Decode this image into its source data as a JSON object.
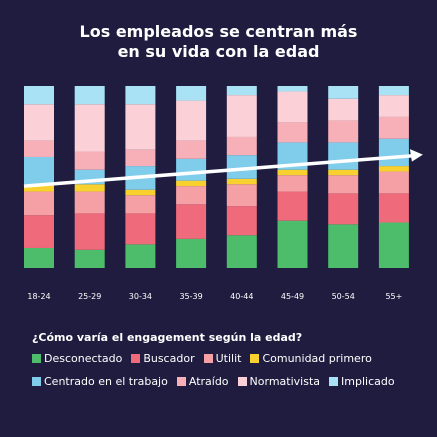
{
  "title_line1": "Los empleados se centran más",
  "title_line2": "en su vida con la edad",
  "legend_title": "¿Cómo varía el engagement según la edad?",
  "chart_data": {
    "type": "bar",
    "stacked": true,
    "normalized": true,
    "title": "Los empleados se centran más en su vida con la edad",
    "categories": [
      "18-24",
      "25-29",
      "30-34",
      "35-39",
      "40-44",
      "45-49",
      "50-54",
      "55+"
    ],
    "ylim": [
      0,
      100
    ],
    "series": [
      {
        "name": "Desconectado",
        "color": "#4dbd6b",
        "values": [
          11,
          10,
          13,
          16,
          18,
          26,
          24,
          25
        ]
      },
      {
        "name": "Buscador",
        "color": "#ef6b7b",
        "values": [
          18,
          20,
          17,
          19,
          16,
          16,
          17,
          16
        ]
      },
      {
        "name": "Utilit",
        "color": "#f5a0a5",
        "values": [
          13,
          12,
          10,
          10,
          12,
          9,
          10,
          12
        ]
      },
      {
        "name": "Comunidad primero",
        "color": "#f8d12e",
        "values": [
          4,
          4,
          3,
          3,
          3,
          3,
          3,
          3
        ]
      },
      {
        "name": "Centrado en el trabajo",
        "color": "#7fcdea",
        "values": [
          15,
          8,
          13,
          12,
          13,
          15,
          15,
          15
        ]
      },
      {
        "name": "Atraído",
        "color": "#f7b0b8",
        "values": [
          9,
          10,
          9,
          10,
          10,
          11,
          12,
          12
        ]
      },
      {
        "name": "Normativista",
        "color": "#fbd0d6",
        "values": [
          20,
          26,
          25,
          22,
          23,
          17,
          12,
          12
        ]
      },
      {
        "name": "Implicado",
        "color": "#a9e1f5",
        "values": [
          10,
          10,
          10,
          8,
          5,
          3,
          7,
          5
        ]
      }
    ],
    "trend_line": {
      "color": "#ffffff",
      "start_value": 45,
      "end_value": 62
    },
    "grid": false,
    "legend": "bottom"
  }
}
